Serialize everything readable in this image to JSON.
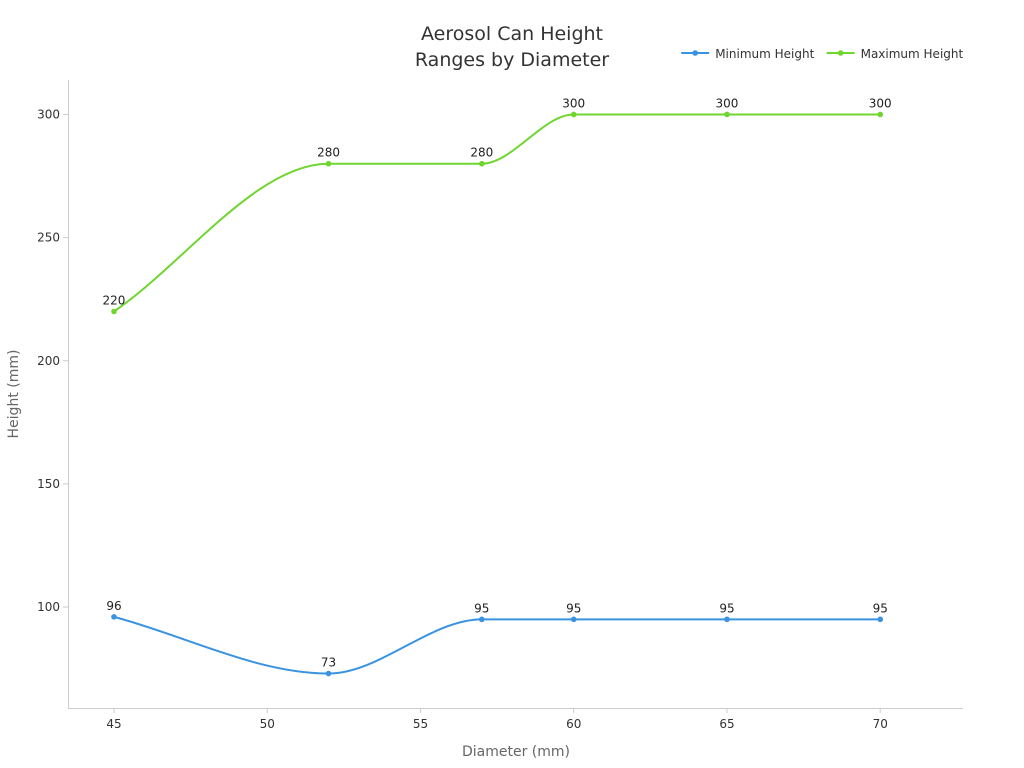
{
  "chart_data": {
    "type": "line",
    "title_lines": [
      "Aerosol Can Height",
      "Ranges by Diameter"
    ],
    "xlabel": "Diameter (mm)",
    "ylabel": "Height (mm)",
    "xlim": [
      43.5,
      72.7
    ],
    "ylim": [
      59,
      314
    ],
    "xticks": [
      45,
      50,
      55,
      60,
      65,
      70
    ],
    "yticks": [
      100,
      150,
      200,
      250,
      300
    ],
    "x": [
      45,
      52,
      57,
      60,
      65,
      70
    ],
    "legend_position": "top-right",
    "smooth": true,
    "grid": false,
    "series": [
      {
        "name": "Minimum Height",
        "color": "#3a93e0",
        "values": [
          96,
          73,
          95,
          95,
          95,
          95
        ]
      },
      {
        "name": "Maximum Height",
        "color": "#6fd630",
        "values": [
          220,
          280,
          280,
          300,
          300,
          300
        ]
      }
    ]
  }
}
